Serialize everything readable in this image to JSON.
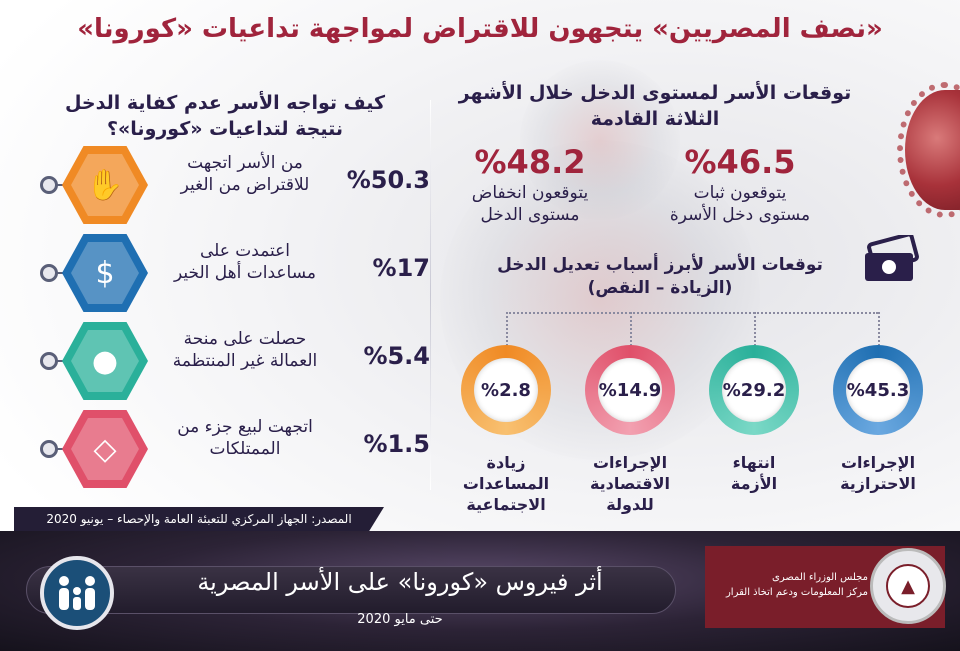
{
  "title": "«نصف المصريين» يتجهون للاقتراض لمواجهة تداعيات «كورونا»",
  "left_section": {
    "title_line1": "كيف تواجه الأسر عدم كفاية الدخل",
    "title_line2": "نتيجة لتداعيات «كورونا»؟",
    "items": [
      {
        "pct": "%50.3",
        "line1": "من الأسر اتجهت",
        "line2": "للاقتراض من الغير",
        "icon": "money-hand-icon",
        "color": "#f08a24"
      },
      {
        "pct": "%17",
        "line1": "اعتمدت على",
        "line2": "مساعدات أهل الخير",
        "icon": "charity-hand-icon",
        "color": "#1f6fb2"
      },
      {
        "pct": "%5.4",
        "line1": "حصلت على منحة",
        "line2": "العمالة غير المنتظمة",
        "icon": "coin-hand-icon",
        "color": "#2ab09a"
      },
      {
        "pct": "%1.5",
        "line1": "اتجهت لبيع جزء من",
        "line2": "الممتلكات",
        "icon": "ring-icon",
        "color": "#e0506a"
      }
    ]
  },
  "right_top": {
    "title_line1": "توقعات الأسر لمستوى الدخل خلال الأشهر",
    "title_line2": "الثلاثة القادمة",
    "stable": {
      "pct": "%46.5",
      "line1": "يتوقعون ثبات",
      "line2": "مستوى دخل الأسرة"
    },
    "decrease": {
      "pct": "%48.2",
      "line1": "يتوقعون انخفاض",
      "line2": "مستوى الدخل"
    }
  },
  "reasons": {
    "title_line1": "توقعات الأسر لأبرز أسباب تعديل الدخل",
    "title_line2": "(الزيادة – النقص)",
    "items": [
      {
        "pct": "%45.3",
        "line1": "الإجراءات",
        "line2": "الاحترازية",
        "line3": "",
        "color": "#1f6fb2"
      },
      {
        "pct": "%29.2",
        "line1": "انتهاء",
        "line2": "الأزمة",
        "line3": "",
        "color": "#2ab09a"
      },
      {
        "pct": "%14.9",
        "line1": "الإجراءات",
        "line2": "الاقتصادية",
        "line3": "للدولة",
        "color": "#e0506a"
      },
      {
        "pct": "%2.8",
        "line1": "زيادة",
        "line2": "المساعدات",
        "line3": "الاجتماعية",
        "color": "#f08a24"
      }
    ]
  },
  "source": "المصدر: الجهاز المركزي للتعبئة العامة والإحصاء – يونيو  2020",
  "footer": {
    "title": "أثر فيروس «كورونا» على الأسر المصرية",
    "subtitle": "حتى مايو 2020",
    "org_line1": "مجلس الوزراء المصرى",
    "org_line2": "مركز المعلومات ودعم اتخاذ القرار"
  }
}
